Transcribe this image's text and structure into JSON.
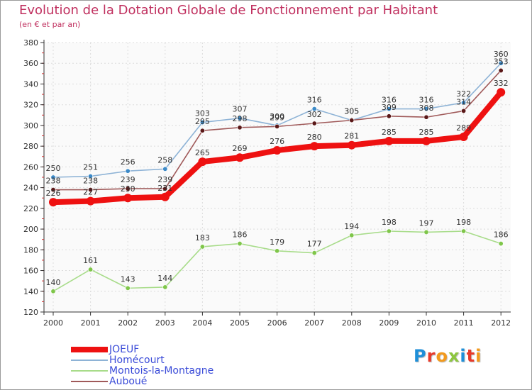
{
  "chart_data": {
    "type": "line",
    "title": "Evolution de la Dotation Globale de Fonctionnement par Habitant",
    "subtitle": "(en € et par an)",
    "xlabel": "",
    "ylabel": "",
    "ylim": [
      120,
      380
    ],
    "yticks": [
      120,
      140,
      160,
      180,
      200,
      220,
      240,
      260,
      280,
      300,
      320,
      340,
      360,
      380
    ],
    "categories": [
      "2000",
      "2001",
      "2002",
      "2003",
      "2004",
      "2005",
      "2006",
      "2007",
      "2008",
      "2009",
      "2010",
      "2011",
      "2012"
    ],
    "series": [
      {
        "name": "Homécourt",
        "color": "#8eb3d6",
        "marker": "#3c8ac8",
        "values": [
          250,
          251,
          256,
          258,
          303,
          307,
          300,
          316,
          305,
          316,
          316,
          322,
          360
        ]
      },
      {
        "name": "Auboué",
        "color": "#a05a5a",
        "marker": "#5a1818",
        "values": [
          238,
          238,
          239,
          239,
          295,
          298,
          299,
          302,
          305,
          309,
          308,
          314,
          353
        ]
      },
      {
        "name": "Montois-la-Montagne",
        "color": "#a8dc8a",
        "marker": "#7fc64a",
        "values": [
          140,
          161,
          143,
          144,
          183,
          186,
          179,
          177,
          194,
          198,
          197,
          198,
          186
        ]
      },
      {
        "name": "JOEUF",
        "color": "#ee1111",
        "marker": "#ee1111",
        "values": [
          226,
          227,
          230,
          231,
          265,
          269,
          276,
          280,
          281,
          285,
          285,
          289,
          332
        ]
      }
    ],
    "legend": [
      "JOEUF",
      "Homécourt",
      "Montois-la-Montagne",
      "Auboué"
    ],
    "legend_position": "bottom-left"
  },
  "logo": {
    "letters": [
      "P",
      "r",
      "o",
      "x",
      "i",
      "t",
      "i"
    ]
  }
}
